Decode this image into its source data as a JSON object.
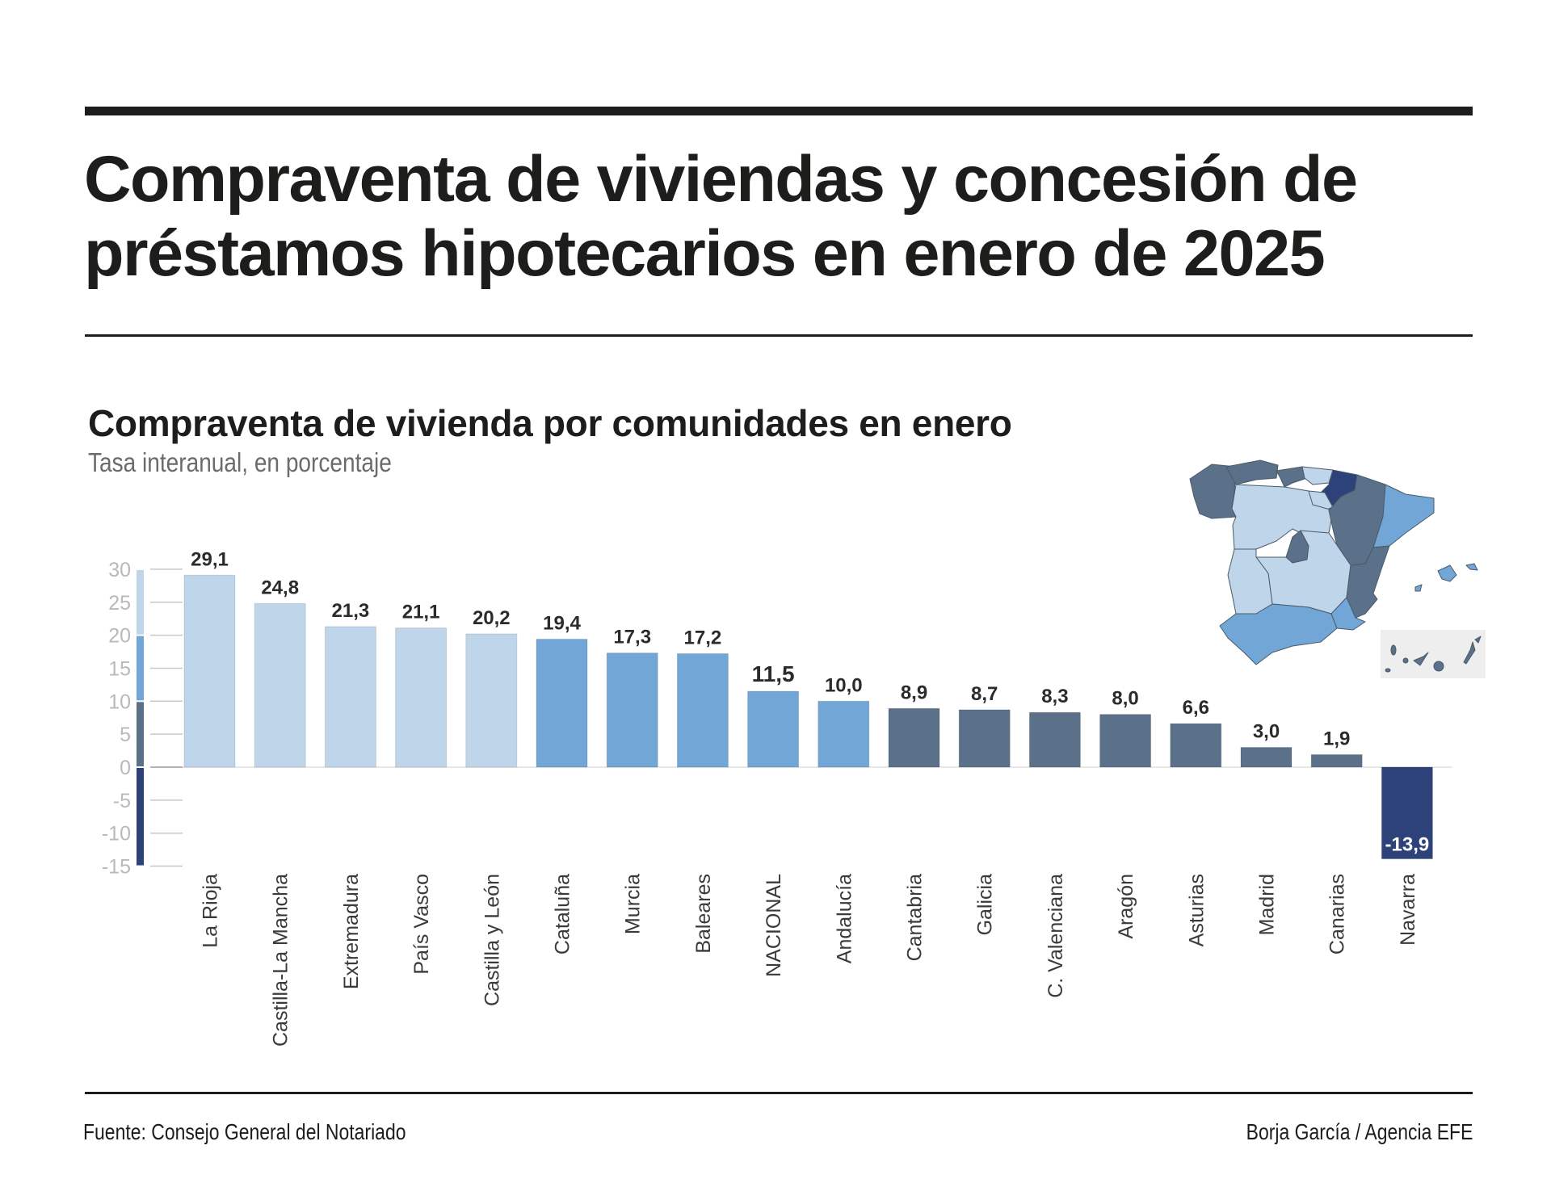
{
  "header": {
    "title_line1": "Compraventa de viviendas y concesión de",
    "title_line2": "préstamos hipotecarios en enero de 2025"
  },
  "footer": {
    "source": "Fuente: Consejo General del Notariado",
    "credit": "Borja García / Agencia EFE"
  },
  "colors": {
    "band_20_30": "#bfd5ea",
    "band_10_20": "#72a6d6",
    "band_0_10": "#5b7189",
    "band_negative": "#2c4279",
    "text_dark": "#1d1d1b",
    "axis_gray": "#b9b9b9",
    "canarias_box": "#eeeeee"
  },
  "chart_data": {
    "type": "bar",
    "title": "Compraventa de vivienda por comunidades en enero",
    "subtitle": "Tasa interanual, en porcentaje",
    "xlabel": "",
    "ylabel": "",
    "ylim": [
      -15,
      30
    ],
    "yticks": [
      30,
      25,
      20,
      15,
      10,
      5,
      0,
      -5,
      -10,
      -15
    ],
    "grid": false,
    "legend": "color scale bar on left axis",
    "color_scale": [
      {
        "range": [
          20,
          30
        ],
        "color": "#bfd5ea"
      },
      {
        "range": [
          10,
          20
        ],
        "color": "#72a6d6"
      },
      {
        "range": [
          0,
          10
        ],
        "color": "#5b7189"
      },
      {
        "range": [
          -15,
          0
        ],
        "color": "#2c4279"
      }
    ],
    "categories": [
      "La Rioja",
      "Castilla-La Mancha",
      "Extremadura",
      "País Vasco",
      "Castilla y León",
      "Cataluña",
      "Murcia",
      "Baleares",
      "NACIONAL",
      "Andalucía",
      "Cantabria",
      "Galicia",
      "C. Valenciana",
      "Aragón",
      "Asturias",
      "Madrid",
      "Canarias",
      "Navarra"
    ],
    "values": [
      29.1,
      24.8,
      21.3,
      21.1,
      20.2,
      19.4,
      17.3,
      17.2,
      11.5,
      10.0,
      8.9,
      8.7,
      8.3,
      8.0,
      6.6,
      3.0,
      1.9,
      -13.9
    ],
    "value_labels": [
      "29,1",
      "24,8",
      "21,3",
      "21,1",
      "20,2",
      "19,4",
      "17,3",
      "17,2",
      "11,5",
      "10,0",
      "8,9",
      "8,7",
      "8,3",
      "8,0",
      "6,6",
      "3,0",
      "1,9",
      "-13,9"
    ],
    "highlighted_category": "NACIONAL"
  },
  "map": {
    "title": "Spain regions choropleth",
    "inset": "Canarias"
  }
}
